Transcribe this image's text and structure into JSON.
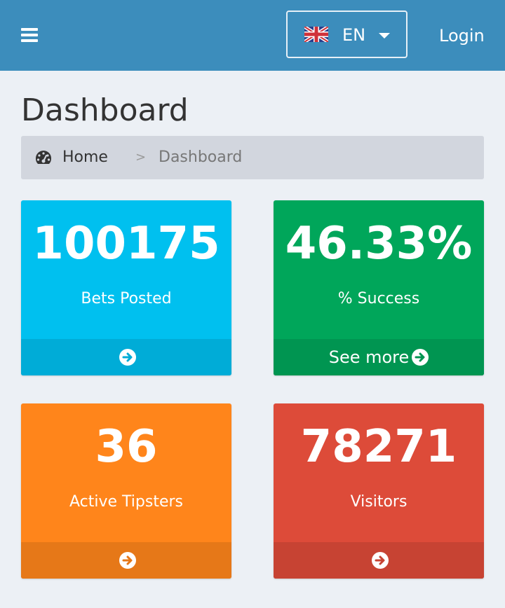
{
  "header": {
    "language": {
      "code": "EN",
      "flag": "uk-flag-icon"
    },
    "login_label": "Login"
  },
  "page": {
    "title": "Dashboard"
  },
  "breadcrumb": {
    "home": "Home",
    "separator": ">",
    "current": "Dashboard"
  },
  "stats": [
    {
      "value": "100175",
      "label": "Bets Posted",
      "footer": "",
      "color": "#00c0ef",
      "footer_color": "#00acd7"
    },
    {
      "value": "46.33%",
      "label": "% Success",
      "footer": "See more",
      "color": "#00a65a",
      "footer_color": "#009551"
    },
    {
      "value": "36",
      "label": "Active Tipsters",
      "footer": "",
      "color": "#ff851b",
      "footer_color": "#e67818"
    },
    {
      "value": "78271",
      "label": "Visitors",
      "footer": "",
      "color": "#dd4b39",
      "footer_color": "#c74333"
    }
  ]
}
